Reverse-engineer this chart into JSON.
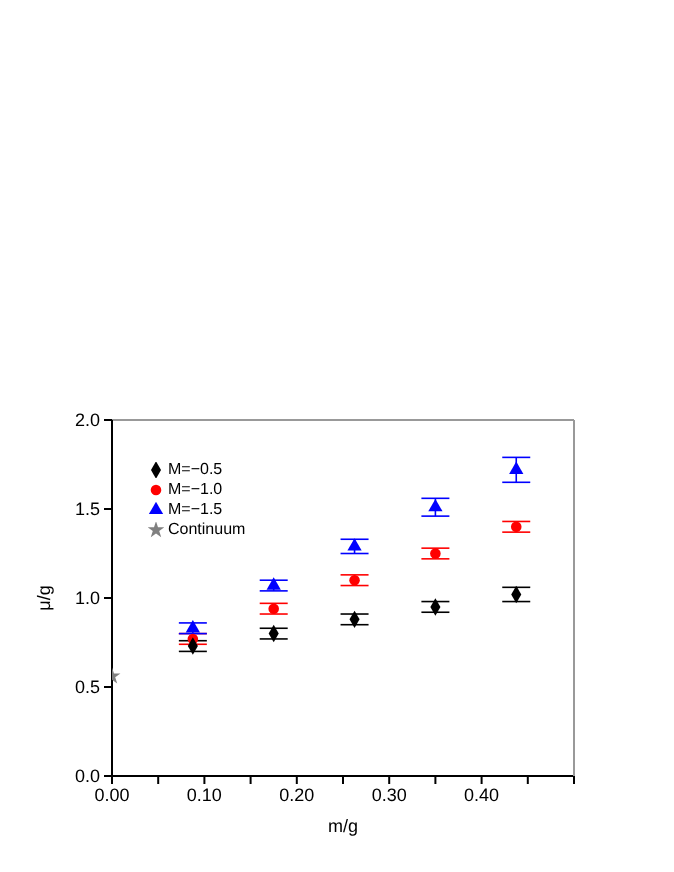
{
  "chart_data": {
    "type": "scatter",
    "xlabel": "m/g",
    "ylabel": "μ/g",
    "xlim": [
      0,
      0.5
    ],
    "ylim": [
      0,
      2
    ],
    "xticks": [
      {
        "value": 0,
        "label": "0.00"
      },
      {
        "value": 0.05,
        "label": null
      },
      {
        "value": 0.1,
        "label": "0.10"
      },
      {
        "value": 0.15,
        "label": null
      },
      {
        "value": 0.2,
        "label": "0.20"
      },
      {
        "value": 0.25,
        "label": null
      },
      {
        "value": 0.3,
        "label": "0.30"
      },
      {
        "value": 0.35,
        "label": null
      },
      {
        "value": 0.4,
        "label": "0.40"
      },
      {
        "value": 0.45,
        "label": null
      },
      {
        "value": 0.5,
        "label": null
      }
    ],
    "yticks": [
      {
        "value": 0,
        "label": "0.0"
      },
      0.5,
      {
        "value": 1,
        "label": "1.0"
      },
      1.5,
      {
        "value": 2,
        "label": "2.0"
      }
    ],
    "legend": "top left",
    "series": [
      {
        "name": "M=−0.5",
        "color": "#000000",
        "marker": "diamond",
        "x": [
          0.0875,
          0.175,
          0.2625,
          0.35,
          0.4375
        ],
        "values": [
          0.73,
          0.8,
          0.88,
          0.95,
          1.02
        ],
        "errors": [
          0.03,
          0.03,
          0.03,
          0.03,
          0.04
        ]
      },
      {
        "name": "M=−1.0",
        "color": "#ff0000",
        "marker": "circle",
        "x": [
          0.0875,
          0.175,
          0.2625,
          0.35,
          0.4375
        ],
        "values": [
          0.77,
          0.94,
          1.1,
          1.25,
          1.4
        ],
        "errors": [
          0.03,
          0.03,
          0.03,
          0.03,
          0.03
        ]
      },
      {
        "name": "M=−1.5",
        "color": "#0000ff",
        "marker": "triangle",
        "x": [
          0.0875,
          0.175,
          0.2625,
          0.35,
          0.4375
        ],
        "values": [
          0.83,
          1.07,
          1.29,
          1.51,
          1.72
        ],
        "errors": [
          0.03,
          0.03,
          0.04,
          0.05,
          0.07
        ]
      },
      {
        "name": "Continuum",
        "color": "#808080",
        "marker": "star",
        "x": [
          0
        ],
        "values": [
          0.56
        ]
      }
    ]
  }
}
